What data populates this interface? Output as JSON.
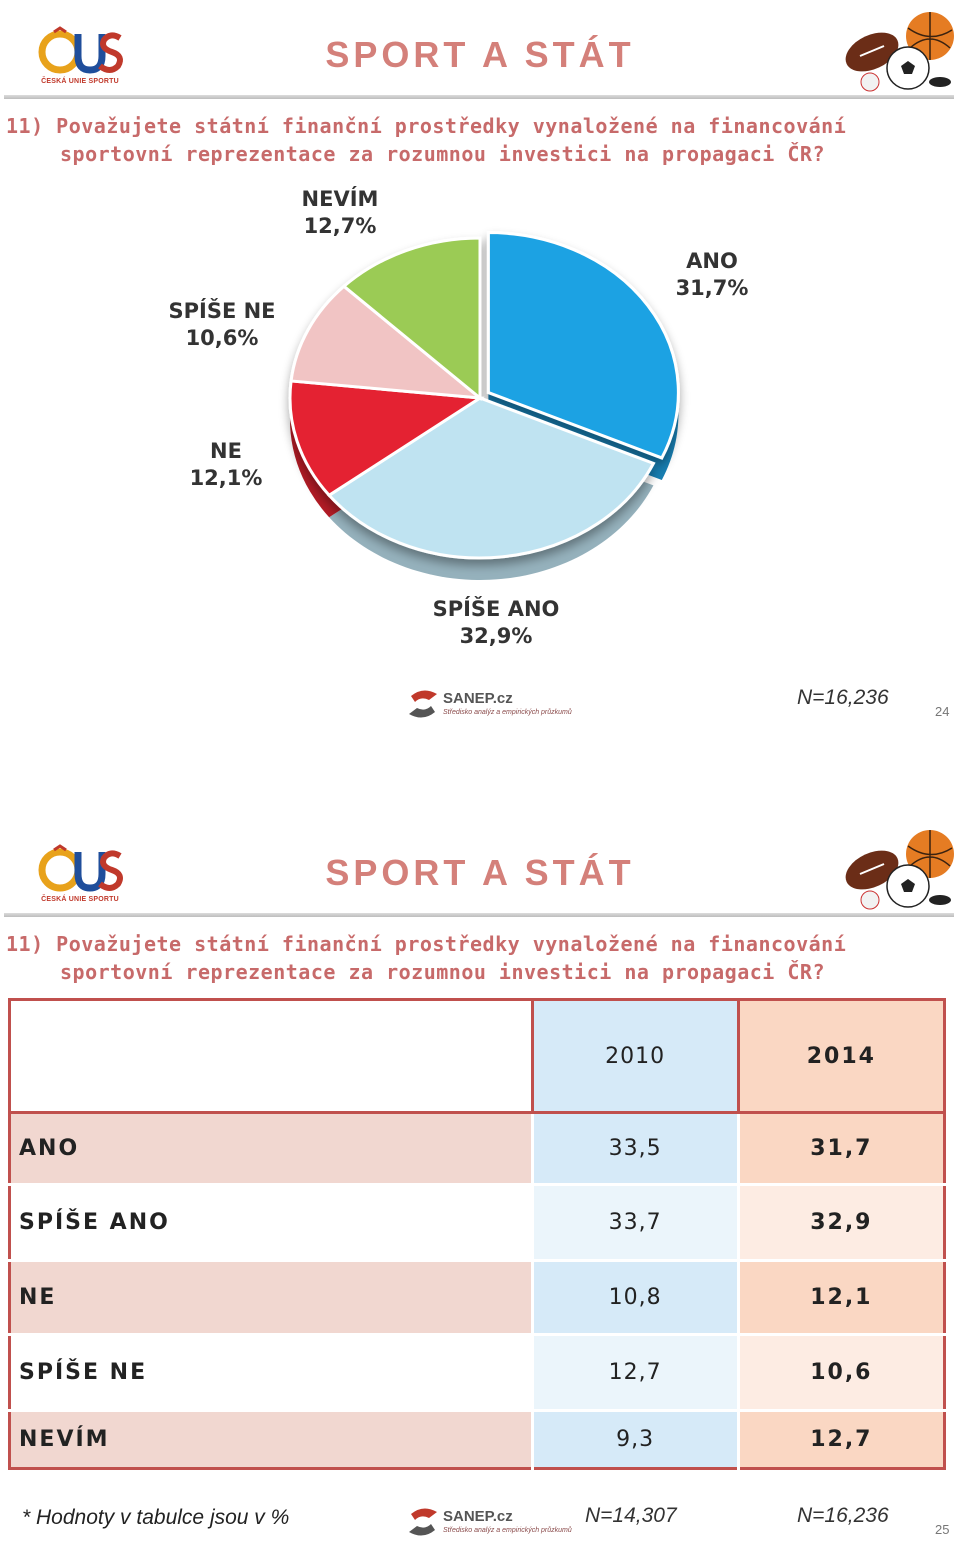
{
  "slide1": {
    "title": "SPORT A STÁT",
    "logo_text": "ČESKÁ UNIE SPORTU",
    "question_line1": "11) Považujete státní finanční prostředky vynaložené na financování",
    "question_line2": "sportovní reprezentace za rozumnou investici na propagaci ČR?",
    "sanep_name": "SANEP.cz",
    "sanep_tagline": "Středisko analýz a empirických průzkumů",
    "n_note": "N=16,236",
    "page_number": "24"
  },
  "chart_data": {
    "type": "pie",
    "title": "",
    "slices": [
      {
        "label": "ANO",
        "value": 31.7,
        "value_label": "31,7%",
        "color": "#1fa2e3"
      },
      {
        "label": "SPÍŠE ANO",
        "value": 32.9,
        "value_label": "32,9%",
        "color": "#bfe3f1"
      },
      {
        "label": "NE",
        "value": 12.1,
        "value_label": "12,1%",
        "color": "#e42230"
      },
      {
        "label": "SPÍŠE NE",
        "value": 10.6,
        "value_label": "10,6%",
        "color": "#f1c4c4"
      },
      {
        "label": "NEVÍM",
        "value": 12.7,
        "value_label": "12,7%",
        "color": "#9bcb54"
      }
    ]
  },
  "slide2": {
    "title": "SPORT A STÁT",
    "logo_text": "ČESKÁ UNIE SPORTU",
    "question_line1": "11) Považujete státní finanční prostředky vynaložené na financování",
    "question_line2": "sportovní reprezentace za rozumnou investici na propagaci ČR?",
    "table": {
      "columns": [
        "",
        "2010",
        "2014"
      ],
      "rows": [
        {
          "label": "ANO",
          "v2010": "33,5",
          "v2014": "31,7"
        },
        {
          "label": "SPÍŠE ANO",
          "v2010": "33,7",
          "v2014": "32,9"
        },
        {
          "label": "NE",
          "v2010": "10,8",
          "v2014": "12,1"
        },
        {
          "label": "SPÍŠE NE",
          "v2010": "12,7",
          "v2014": "10,6"
        },
        {
          "label": "NEVÍM",
          "v2010": "9,3",
          "v2014": "12,7"
        }
      ]
    },
    "footnote": "*  Hodnoty v tabulce jsou v %",
    "sanep_name": "SANEP.cz",
    "sanep_tagline": "Středisko analýz a empirických průzkumů",
    "n_2010": "N=14,307",
    "n_2014": "N=16,236",
    "page_number": "25"
  }
}
